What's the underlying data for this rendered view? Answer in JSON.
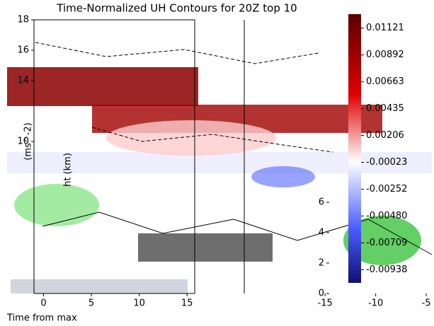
{
  "chart_data": {
    "type": "contour",
    "title": "Time-Normalized UH Contours for 20Z top 10",
    "xlabel": "Time from max",
    "ylabel": "ht (km)",
    "colorbar_label": "(ms^-2)",
    "ylim": [
      0,
      18
    ],
    "yticks": [
      0,
      2,
      4,
      6,
      10,
      14,
      16,
      18
    ],
    "xlim": [
      -1,
      15.8
    ],
    "xticks": [
      0,
      5,
      10,
      15
    ],
    "x2lim": [
      -23,
      -4.3
    ],
    "x2ticks": [
      -15,
      -10,
      -5
    ],
    "colorbar_lim": [
      -0.0105,
      0.0124
    ],
    "colorbar_ticks": [
      0.01121,
      0.00892,
      0.00663,
      0.00435,
      0.00206,
      -0.00023,
      -0.00252,
      {
        "value": -0.0048,
        "label": "-0.00480"
      },
      -0.00709,
      -0.00938
    ]
  }
}
